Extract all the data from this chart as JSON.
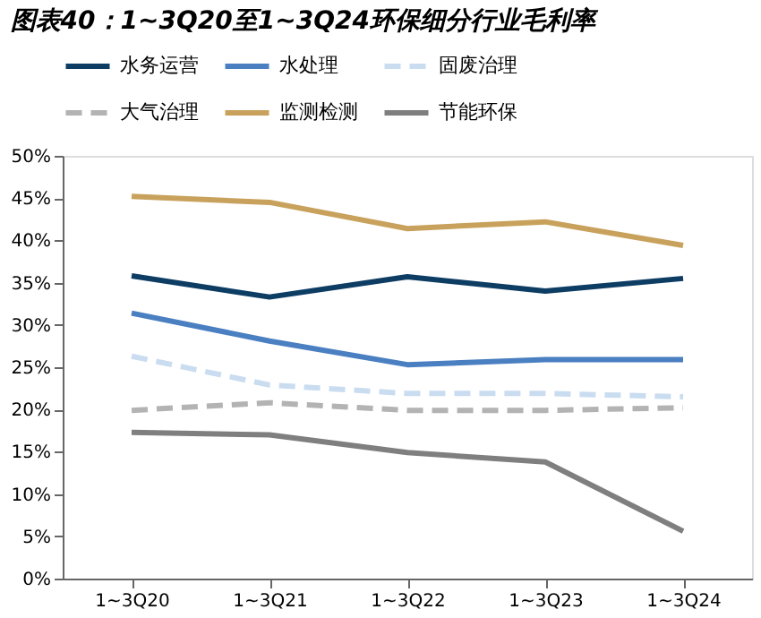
{
  "chart_data": {
    "type": "line",
    "title": "图表40：1~3Q20至1~3Q24环保细分行业毛利率",
    "categories": [
      "1~3Q20",
      "1~3Q21",
      "1~3Q22",
      "1~3Q23",
      "1~3Q24"
    ],
    "series": [
      {
        "name": "水务运营",
        "color": "#0e3d64",
        "line_style": "solid",
        "values": [
          35.8,
          33.3,
          35.7,
          34.0,
          35.5
        ]
      },
      {
        "name": "水处理",
        "color": "#4a7fc1",
        "line_style": "solid",
        "values": [
          31.4,
          28.1,
          25.3,
          25.9,
          25.9
        ]
      },
      {
        "name": "固废治理",
        "color": "#cadcf0",
        "line_style": "dashed",
        "values": [
          26.3,
          22.9,
          21.9,
          21.9,
          21.5
        ]
      },
      {
        "name": "大气治理",
        "color": "#b3b3b3",
        "line_style": "dashed",
        "values": [
          19.9,
          20.8,
          19.9,
          19.9,
          20.2
        ]
      },
      {
        "name": "监测检测",
        "color": "#c8a25c",
        "line_style": "solid",
        "values": [
          45.2,
          44.5,
          41.4,
          42.2,
          39.4
        ]
      },
      {
        "name": "节能环保",
        "color": "#7f7f7f",
        "line_style": "solid",
        "values": [
          17.3,
          17.0,
          14.9,
          13.8,
          5.6
        ]
      }
    ],
    "ylim": [
      0,
      50
    ],
    "yticks": [
      {
        "value": 0,
        "label": "0%"
      },
      {
        "value": 5,
        "label": "5%"
      },
      {
        "value": 10,
        "label": "10%"
      },
      {
        "value": 15,
        "label": "15%"
      },
      {
        "value": 20,
        "label": "20%"
      },
      {
        "value": 25,
        "label": "25%"
      },
      {
        "value": 30,
        "label": "30%"
      },
      {
        "value": 35,
        "label": "35%"
      },
      {
        "value": 40,
        "label": "40%"
      },
      {
        "value": 45,
        "label": "45%"
      },
      {
        "value": 50,
        "label": "50%"
      }
    ],
    "grid": false,
    "legend": "top",
    "marker": "none"
  }
}
